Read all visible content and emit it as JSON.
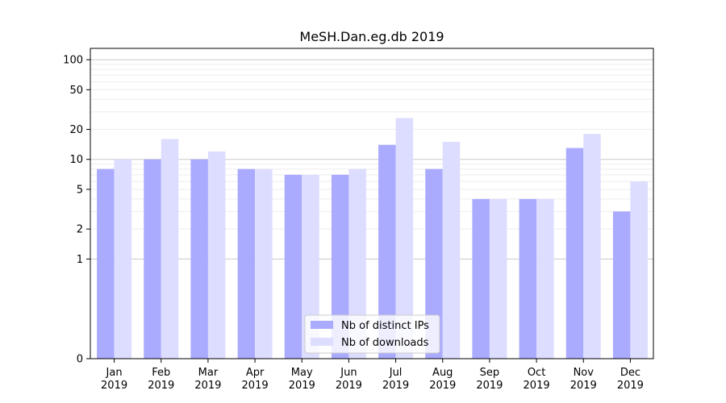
{
  "chart_data": {
    "type": "bar",
    "title": "MeSH.Dan.eg.db 2019",
    "xlabel": "",
    "ylabel": "",
    "y_scale": "symlog",
    "ylim": [
      0,
      130
    ],
    "y_ticks": [
      0,
      1,
      2,
      5,
      10,
      20,
      50,
      100
    ],
    "y_tick_labels": [
      "0",
      "1",
      "2",
      "5",
      "10",
      "20",
      "50",
      "100"
    ],
    "grid": true,
    "legend_position": "bottom-center",
    "categories": [
      [
        "Jan",
        "2019"
      ],
      [
        "Feb",
        "2019"
      ],
      [
        "Mar",
        "2019"
      ],
      [
        "Apr",
        "2019"
      ],
      [
        "May",
        "2019"
      ],
      [
        "Jun",
        "2019"
      ],
      [
        "Jul",
        "2019"
      ],
      [
        "Aug",
        "2019"
      ],
      [
        "Sep",
        "2019"
      ],
      [
        "Oct",
        "2019"
      ],
      [
        "Nov",
        "2019"
      ],
      [
        "Dec",
        "2019"
      ]
    ],
    "series": [
      {
        "name": "Nb of distinct IPs",
        "color": "#aaaaff",
        "values": [
          8,
          10,
          10,
          8,
          7,
          7,
          14,
          8,
          4,
          4,
          13,
          3
        ]
      },
      {
        "name": "Nb of downloads",
        "color": "#ddddff",
        "values": [
          10,
          16,
          12,
          8,
          7,
          8,
          26,
          15,
          4,
          4,
          18,
          6
        ]
      }
    ]
  }
}
